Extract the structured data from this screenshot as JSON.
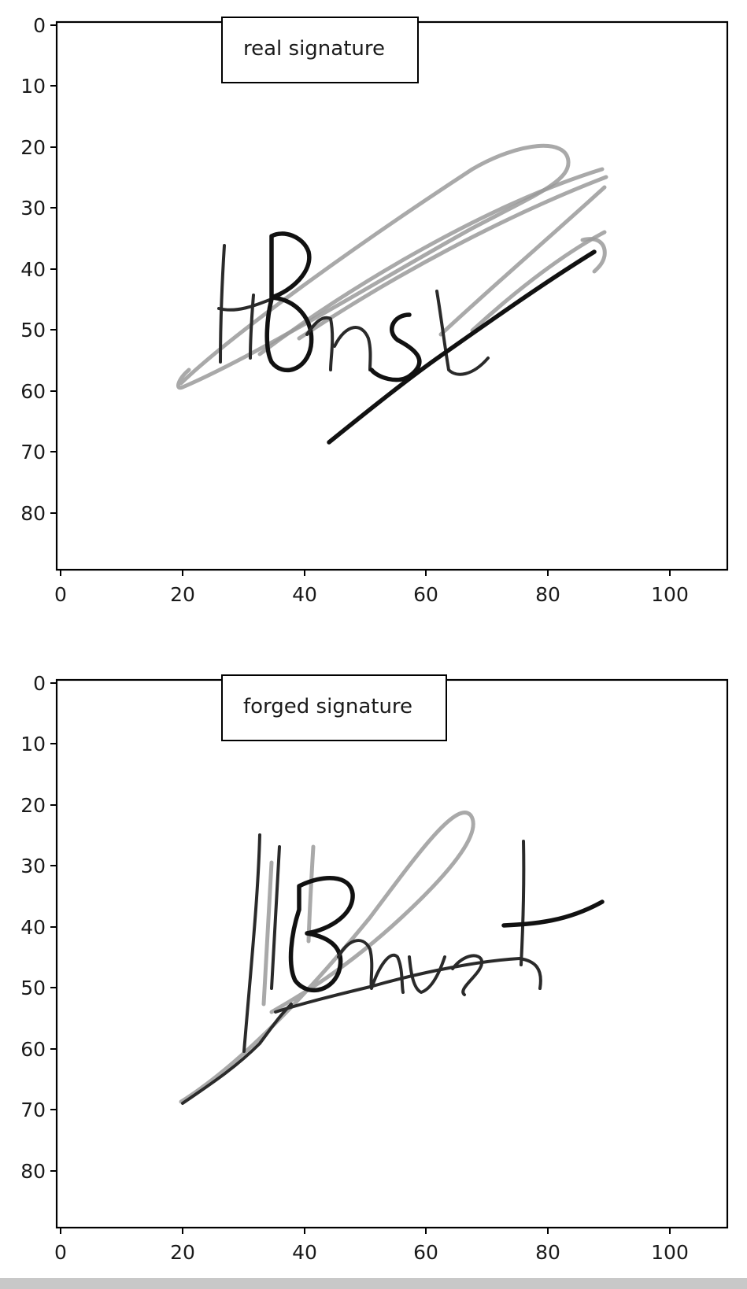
{
  "panels": [
    {
      "legend": "real signature",
      "x_ticks": [
        "0",
        "20",
        "40",
        "60",
        "80",
        "100"
      ],
      "y_ticks": [
        "0",
        "10",
        "20",
        "30",
        "40",
        "50",
        "60",
        "70",
        "80"
      ]
    },
    {
      "legend": "forged signature",
      "x_ticks": [
        "0",
        "20",
        "40",
        "60",
        "80",
        "100"
      ],
      "y_ticks": [
        "0",
        "10",
        "20",
        "30",
        "40",
        "50",
        "60",
        "70",
        "80"
      ]
    }
  ],
  "signature_images": [
    {
      "name": "real-signature-image",
      "description_of_strokes": "handwritten signature strokes, grayscale"
    },
    {
      "name": "forged-signature-image",
      "description_of_strokes": "handwritten signature strokes, grayscale"
    }
  ]
}
